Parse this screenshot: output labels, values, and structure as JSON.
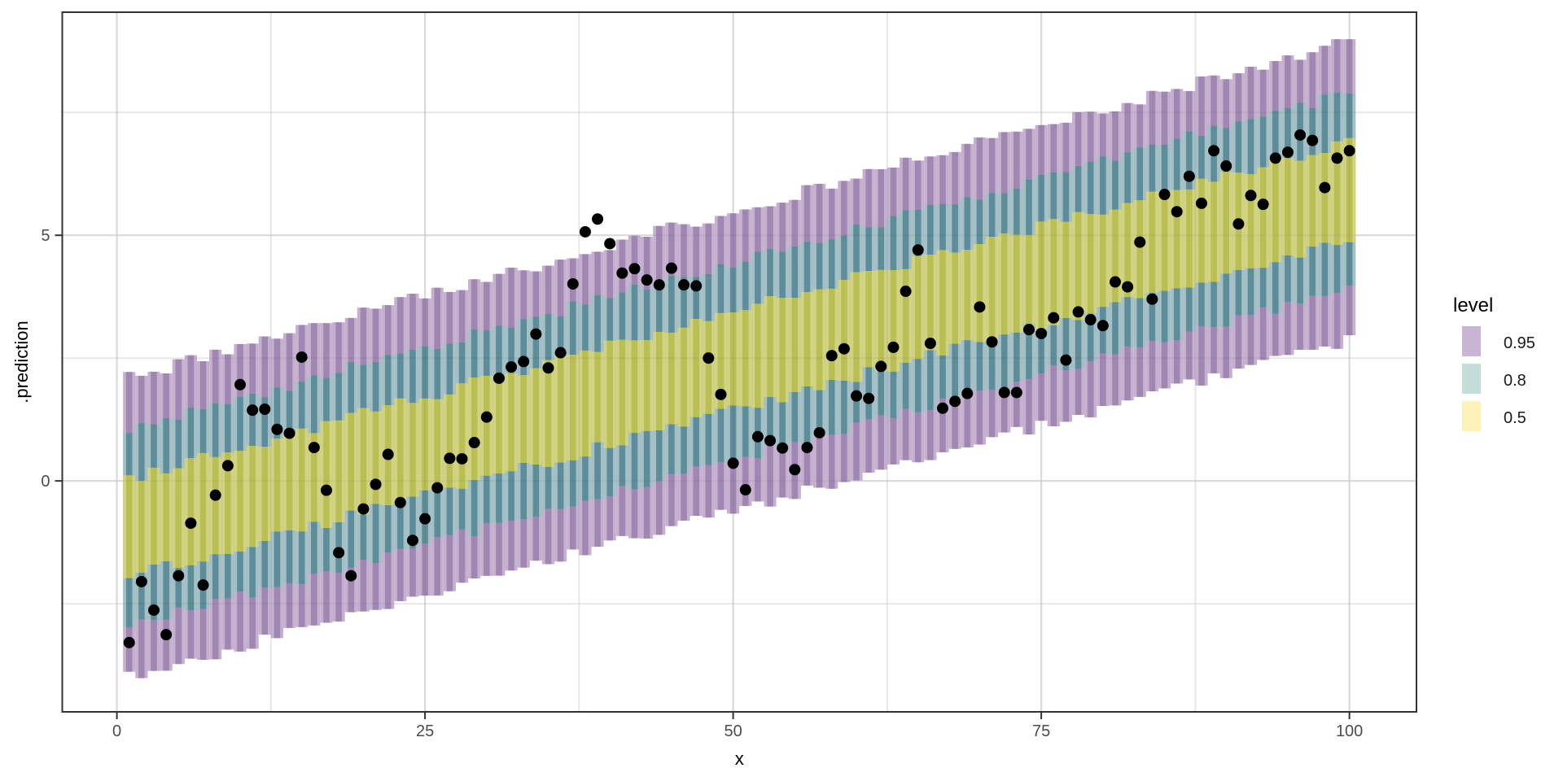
{
  "chart_data": {
    "type": "bar",
    "subtype": "prediction-interval-bars-with-scatter",
    "title": "",
    "xlabel": "x",
    "ylabel": ".prediction",
    "xlim": [
      -4.43,
      105.44
    ],
    "ylim": [
      -4.7,
      9.54
    ],
    "x_ticks_at": [
      0,
      25,
      50,
      75,
      100
    ],
    "x_tick_labels": [
      "0",
      "25",
      "50",
      "75",
      "100"
    ],
    "y_ticks_at": [
      0,
      5
    ],
    "y_tick_labels": [
      "0",
      "5"
    ],
    "x_minor_at": [
      12.5,
      37.5,
      62.5,
      87.5
    ],
    "y_minor_at": [
      -2.5,
      2.5,
      7.5
    ],
    "grid": "on",
    "legend_position": "right",
    "legend": {
      "title": "level",
      "entries": [
        {
          "label": "0.95",
          "swatch": "#c8b5d3"
        },
        {
          "label": "0.8",
          "swatch": "#c6ded9"
        },
        {
          "label": "0.5",
          "swatch": "#fdf2ba"
        }
      ]
    },
    "bands": {
      "x_start": 1,
      "x_end": 100,
      "center_intercept": -1.02,
      "center_slope": 0.0692,
      "jitter": 0.12,
      "levels": [
        {
          "level": "0.95",
          "half_width": 3.05,
          "fill_light": "#c5b0d0",
          "fill_dark": "#a087b2"
        },
        {
          "level": "0.8",
          "half_width": 2.0,
          "fill_light": "#a2c0c6",
          "fill_dark": "#5e8d99"
        },
        {
          "level": "0.5",
          "half_width": 1.0,
          "fill_light": "#d2d381",
          "fill_dark": "#b9bf55"
        }
      ]
    },
    "points": [
      [
        1,
        -3.29
      ],
      [
        2,
        -2.05
      ],
      [
        3,
        -2.63
      ],
      [
        4,
        -3.13
      ],
      [
        5,
        -1.93
      ],
      [
        6,
        -0.86
      ],
      [
        7,
        -2.12
      ],
      [
        8,
        -0.29
      ],
      [
        9,
        0.31
      ],
      [
        10,
        1.96
      ],
      [
        11,
        1.44
      ],
      [
        12,
        1.46
      ],
      [
        13,
        1.05
      ],
      [
        14,
        0.97
      ],
      [
        15,
        2.52
      ],
      [
        16,
        0.68
      ],
      [
        17,
        -0.19
      ],
      [
        18,
        -1.46
      ],
      [
        19,
        -1.93
      ],
      [
        20,
        -0.57
      ],
      [
        21,
        -0.07
      ],
      [
        22,
        0.54
      ],
      [
        23,
        -0.44
      ],
      [
        24,
        -1.21
      ],
      [
        25,
        -0.77
      ],
      [
        26,
        -0.14
      ],
      [
        27,
        0.46
      ],
      [
        28,
        0.45
      ],
      [
        29,
        0.78
      ],
      [
        30,
        1.3
      ],
      [
        31,
        2.09
      ],
      [
        32,
        2.32
      ],
      [
        33,
        2.43
      ],
      [
        34,
        2.99
      ],
      [
        35,
        2.3
      ],
      [
        36,
        2.61
      ],
      [
        37,
        4.01
      ],
      [
        38,
        5.07
      ],
      [
        39,
        5.33
      ],
      [
        40,
        4.83
      ],
      [
        41,
        4.23
      ],
      [
        42,
        4.32
      ],
      [
        43,
        4.09
      ],
      [
        44,
        3.99
      ],
      [
        45,
        4.33
      ],
      [
        46,
        3.99
      ],
      [
        47,
        3.97
      ],
      [
        48,
        2.5
      ],
      [
        49,
        1.76
      ],
      [
        50,
        0.36
      ],
      [
        51,
        -0.18
      ],
      [
        52,
        0.9
      ],
      [
        53,
        0.82
      ],
      [
        54,
        0.67
      ],
      [
        55,
        0.23
      ],
      [
        56,
        0.68
      ],
      [
        57,
        0.98
      ],
      [
        58,
        2.55
      ],
      [
        59,
        2.69
      ],
      [
        60,
        1.73
      ],
      [
        61,
        1.68
      ],
      [
        62,
        2.33
      ],
      [
        63,
        2.72
      ],
      [
        64,
        3.86
      ],
      [
        65,
        4.7
      ],
      [
        66,
        2.8
      ],
      [
        67,
        1.48
      ],
      [
        68,
        1.62
      ],
      [
        69,
        1.78
      ],
      [
        70,
        3.54
      ],
      [
        71,
        2.83
      ],
      [
        72,
        1.8
      ],
      [
        73,
        1.8
      ],
      [
        74,
        3.08
      ],
      [
        75,
        3.0
      ],
      [
        76,
        3.32
      ],
      [
        77,
        2.46
      ],
      [
        78,
        3.44
      ],
      [
        79,
        3.28
      ],
      [
        80,
        3.16
      ],
      [
        81,
        4.05
      ],
      [
        82,
        3.95
      ],
      [
        83,
        4.86
      ],
      [
        84,
        3.7
      ],
      [
        85,
        5.83
      ],
      [
        86,
        5.48
      ],
      [
        87,
        6.2
      ],
      [
        88,
        5.65
      ],
      [
        89,
        6.72
      ],
      [
        90,
        6.41
      ],
      [
        91,
        5.23
      ],
      [
        92,
        5.81
      ],
      [
        93,
        5.63
      ],
      [
        94,
        6.57
      ],
      [
        95,
        6.69
      ],
      [
        96,
        7.04
      ],
      [
        97,
        6.93
      ],
      [
        98,
        5.97
      ],
      [
        99,
        6.57
      ],
      [
        100,
        6.72
      ]
    ],
    "style": {
      "panel_background": "#ffffff",
      "panel_border": "#333333",
      "grid_major": "#e4e4e4",
      "grid_minor": "#f1f1f1",
      "tick_color": "#333333",
      "tick_label_color": "#4d4d4d",
      "axis_title_color": "#000000",
      "point_color": "#000000",
      "point_radius": 7
    }
  }
}
